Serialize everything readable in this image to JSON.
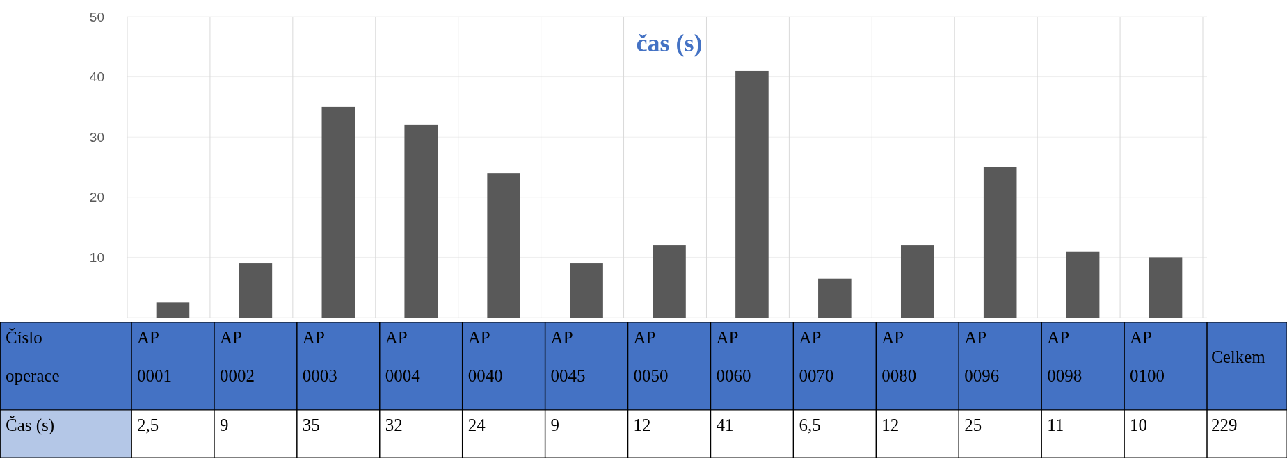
{
  "chart_data": {
    "type": "bar",
    "title": "čas (s)",
    "xlabel": "Číslo operace",
    "ylabel": "Čas (s)",
    "categories": [
      "AP 0001",
      "AP 0002",
      "AP 0003",
      "AP 0004",
      "AP 0040",
      "AP 0045",
      "AP 0050",
      "AP 0060",
      "AP 0070",
      "AP 0080",
      "AP 0096",
      "AP 0098",
      "AP 0100"
    ],
    "values": [
      2.5,
      9,
      35,
      32,
      24,
      9,
      12,
      41,
      6.5,
      12,
      25,
      11,
      10
    ],
    "value_labels": [
      "2,5",
      "9",
      "35",
      "32",
      "24",
      "9",
      "12",
      "41",
      "6,5",
      "12",
      "25",
      "11",
      "10"
    ],
    "color": "#595959",
    "ylim": [
      0,
      50
    ],
    "yticks": [
      {
        "value": 0,
        "label": null
      },
      10,
      20,
      30,
      40,
      50
    ],
    "grid": "y",
    "annotations": [
      "Celkem",
      "229"
    ]
  }
}
